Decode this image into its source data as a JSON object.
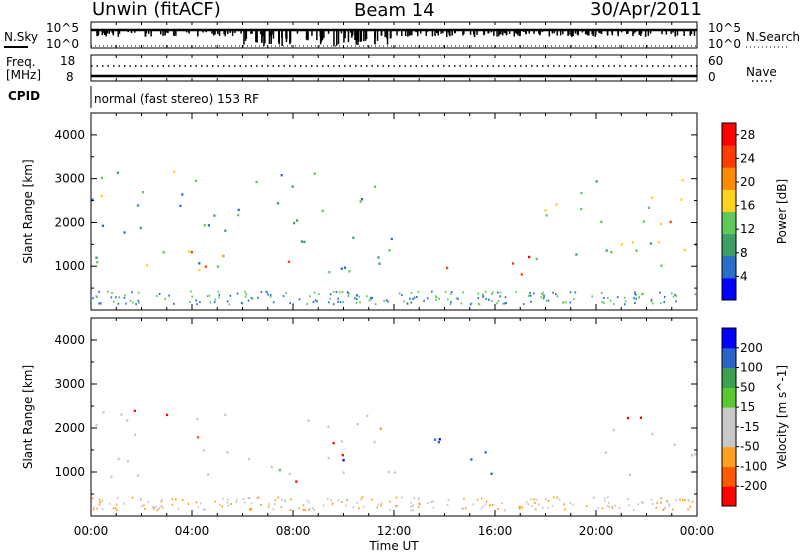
{
  "header": {
    "station": "Unwin (fitACF)",
    "beam": "Beam 14",
    "date": "30/Apr/2011"
  },
  "noise_panel": {
    "left_label": "N.Sky",
    "left_ticks": [
      "10^5",
      "10^0"
    ],
    "right_ticks": [
      "10^5",
      "10^0"
    ],
    "right_label": "N.Search"
  },
  "freq_panel": {
    "label_line1": "Freq.",
    "label_line2": "[MHz]",
    "left_ticks": [
      "18",
      "8"
    ],
    "right_ticks": [
      "60",
      "0"
    ],
    "right_label": "Nave"
  },
  "cpid_panel": {
    "label": "CPID",
    "text": "normal (fast stereo) 153 RF"
  },
  "colors": {
    "power_scale": [
      "#0000ff",
      "#2a6ec8",
      "#3c9f64",
      "#5ec85a",
      "#ffd21e",
      "#ff8c00",
      "#ff3c00",
      "#ff0000"
    ],
    "velocity_scale": [
      "#ff0000",
      "#ff5a00",
      "#ffa01e",
      "#c8c8c8",
      "#c8c8c8",
      "#5ac832",
      "#3ca050",
      "#2a64c8",
      "#0000ff"
    ],
    "grey_scatter": "#c8c8c8"
  },
  "chart_data": [
    {
      "type": "heatmap",
      "name": "power",
      "ylabel": "Slant Range [km]",
      "y_ticks": [
        1000,
        2000,
        3000,
        4000
      ],
      "x_ticks": [
        "00:00",
        "04:00",
        "08:00",
        "12:00",
        "16:00",
        "20:00",
        "00:00"
      ],
      "xlim": [
        "00:00",
        "24:00"
      ],
      "ylim": [
        0,
        4500
      ],
      "colorbar": {
        "label": "Power [dB]",
        "ticks": [
          4,
          8,
          12,
          16,
          20,
          24,
          28
        ],
        "range": [
          0,
          30
        ]
      },
      "echo_regions": [
        {
          "t_start": 0.0,
          "t_end": 12.0,
          "r_min": 800,
          "r_max": 3200,
          "power_db": 10
        },
        {
          "t_start": 0.0,
          "t_end": 5.0,
          "r_min": 900,
          "r_max": 1500,
          "power_db": 20
        },
        {
          "t_start": 6.5,
          "t_end": 8.5,
          "r_min": 800,
          "r_max": 1200,
          "power_db": 26
        },
        {
          "t_start": 14.0,
          "t_end": 17.5,
          "r_min": 800,
          "r_max": 1400,
          "power_db": 28
        },
        {
          "t_start": 17.5,
          "t_end": 24.0,
          "r_min": 800,
          "r_max": 3000,
          "power_db": 14
        },
        {
          "t_start": 21.0,
          "t_end": 23.0,
          "r_min": 1800,
          "r_max": 2500,
          "power_db": 18
        }
      ]
    },
    {
      "type": "heatmap",
      "name": "velocity",
      "ylabel": "Slant Range [km]",
      "y_ticks": [
        1000,
        2000,
        3000,
        4000
      ],
      "x_ticks": [
        "00:00",
        "04:00",
        "08:00",
        "12:00",
        "16:00",
        "20:00",
        "00:00"
      ],
      "xlabel": "Time UT",
      "xlim": [
        "00:00",
        "24:00"
      ],
      "ylim": [
        0,
        4500
      ],
      "colorbar": {
        "label": "Velocity [m s^-1]",
        "ticks": [
          200,
          100,
          50,
          15,
          -15,
          -50,
          -100,
          -200
        ],
        "range": [
          -250,
          250
        ]
      },
      "echo_regions": [
        {
          "t_start": 0.0,
          "t_end": 12.0,
          "r_min": 900,
          "r_max": 2400,
          "velocity": 0
        },
        {
          "t_start": 1.5,
          "t_end": 4.0,
          "r_min": 2100,
          "r_max": 2500,
          "velocity": -200
        },
        {
          "t_start": 6.5,
          "t_end": 8.5,
          "r_min": 700,
          "r_max": 1100,
          "velocity": -200
        },
        {
          "t_start": 8.0,
          "t_end": 10.0,
          "r_min": 1000,
          "r_max": 1700,
          "velocity": -100
        },
        {
          "t_start": 9.5,
          "t_end": 11.0,
          "r_min": 1200,
          "r_max": 1600,
          "velocity": 200
        },
        {
          "t_start": 13.5,
          "t_end": 15.5,
          "r_min": 900,
          "r_max": 1800,
          "velocity": 200
        },
        {
          "t_start": 15.0,
          "t_end": 17.5,
          "r_min": 800,
          "r_max": 1500,
          "velocity": 100
        },
        {
          "t_start": 20.0,
          "t_end": 24.0,
          "r_min": 800,
          "r_max": 2000,
          "velocity": 0
        },
        {
          "t_start": 21.0,
          "t_end": 23.0,
          "r_min": 2000,
          "r_max": 2500,
          "velocity": -200
        }
      ]
    }
  ]
}
